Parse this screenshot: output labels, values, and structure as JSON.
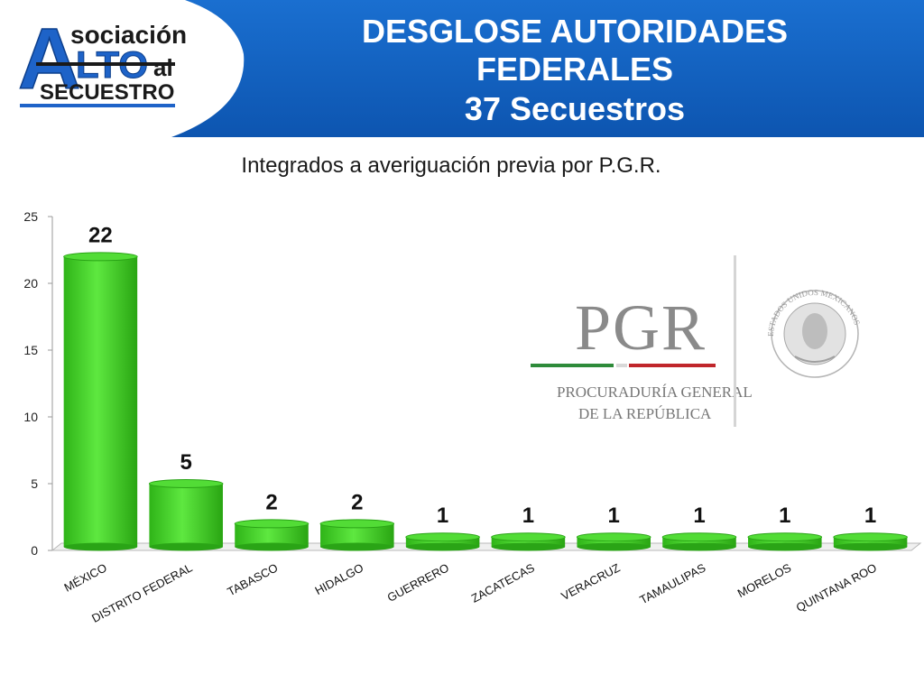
{
  "header": {
    "title_line1": "DESGLOSE AUTORIDADES",
    "title_line2": "FEDERALES",
    "title_line3": "37 Secuestros",
    "subtitle": "Integrados a averiguación previa por P.G.R."
  },
  "logo": {
    "line_a": "A",
    "line_sociacion": "sociación",
    "line_lto": "LTO",
    "line_al": "al",
    "line_secuestro": "SECUESTRO"
  },
  "pgr_logo": {
    "acronym": "PGR",
    "line1": "PROCURADURÍA GENERAL",
    "line2": "DE LA REPÚBLICA",
    "seal_text": "ESTADOS UNIDOS MEXICANOS"
  },
  "colors": {
    "header_blue": "#1565c0",
    "bar_green": "#44d62a",
    "bar_green_dark": "#2aa416"
  },
  "chart_data": {
    "type": "bar",
    "categories": [
      "MÉXICO",
      "DISTRITO FEDERAL",
      "TABASCO",
      "HIDALGO",
      "GUERRERO",
      "ZACATECAS",
      "VERACRUZ",
      "TAMAULIPAS",
      "MORELOS",
      "QUINTANA ROO"
    ],
    "values": [
      22,
      5,
      2,
      2,
      1,
      1,
      1,
      1,
      1,
      1
    ],
    "ylim": [
      0,
      25
    ],
    "yticks": [
      0,
      5,
      10,
      15,
      20,
      25
    ],
    "grid": false,
    "legend": "none",
    "style": "3d-cylinder"
  }
}
